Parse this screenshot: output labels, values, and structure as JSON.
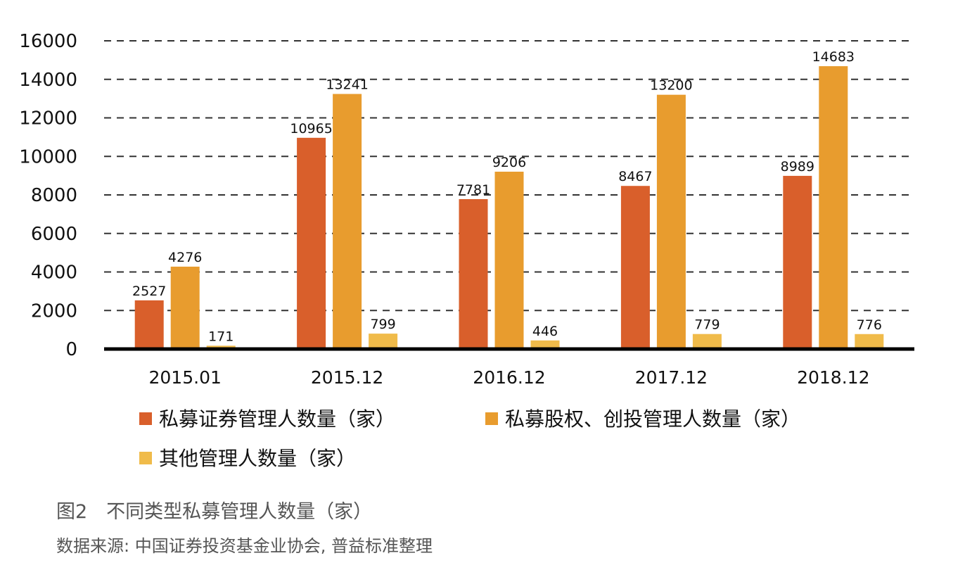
{
  "chart_data": {
    "type": "bar",
    "categories": [
      "2015.01",
      "2015.12",
      "2016.12",
      "2017.12",
      "2018.12"
    ],
    "series": [
      {
        "name": "私募证券管理人数量（家）",
        "values": [
          2527,
          10965,
          7781,
          8467,
          8989
        ],
        "color": "#D95F2B"
      },
      {
        "name": "私募股权、创投管理人数量（家）",
        "values": [
          4276,
          13241,
          9206,
          13200,
          14683
        ],
        "color": "#E89C2E"
      },
      {
        "name": "其他管理人数量（家）",
        "values": [
          171,
          799,
          446,
          779,
          776
        ],
        "color": "#F0BB4A"
      }
    ],
    "yticks": [
      0,
      2000,
      4000,
      6000,
      8000,
      10000,
      12000,
      14000,
      16000
    ],
    "ylim": [
      0,
      16000
    ],
    "grid": "horizontal-dashed",
    "legend_position": "bottom",
    "title": "",
    "xlabel": "",
    "ylabel": ""
  },
  "caption": "图2　不同类型私募管理人数量（家）",
  "source": "数据来源: 中国证券投资基金业协会, 普益标准整理"
}
